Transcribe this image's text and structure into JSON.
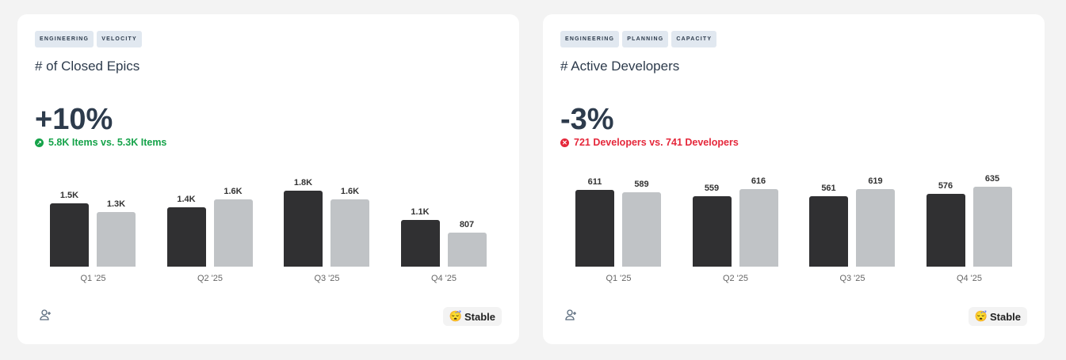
{
  "cards": [
    {
      "tags": [
        "ENGINEERING",
        "VELOCITY"
      ],
      "title": "# of Closed Epics",
      "change": "+10%",
      "comparison": "5.8K Items vs. 5.3K Items",
      "trend": "up",
      "trend_color": "#16a34a",
      "badge": {
        "emoji": "😴",
        "label": "Stable"
      },
      "chart_data": {
        "type": "bar",
        "categories": [
          "Q1 '25",
          "Q2 '25",
          "Q3 '25",
          "Q4 '25"
        ],
        "series": [
          {
            "values": [
              1500,
              1400,
              1800,
              1100
            ],
            "labels": [
              "1.5K",
              "1.4K",
              "1.8K",
              "1.1K"
            ],
            "color": "#303032"
          },
          {
            "values": [
              1300,
              1600,
              1600,
              807
            ],
            "labels": [
              "1.3K",
              "1.6K",
              "1.6K",
              "807"
            ],
            "color": "#c0c3c6"
          }
        ]
      }
    },
    {
      "tags": [
        "ENGINEERING",
        "PLANNING",
        "CAPACITY"
      ],
      "title": "# Active Developers",
      "change": "-3%",
      "comparison": "721 Developers vs. 741 Developers",
      "trend": "down",
      "trend_color": "#e5283b",
      "badge": {
        "emoji": "😴",
        "label": "Stable"
      },
      "chart_data": {
        "type": "bar",
        "categories": [
          "Q1 '25",
          "Q2 '25",
          "Q3 '25",
          "Q4 '25"
        ],
        "series": [
          {
            "values": [
              611,
              559,
              561,
              576
            ],
            "labels": [
              "611",
              "559",
              "561",
              "576"
            ],
            "color": "#303032"
          },
          {
            "values": [
              589,
              616,
              619,
              635
            ],
            "labels": [
              "589",
              "616",
              "619",
              "635"
            ],
            "color": "#c0c3c6"
          }
        ]
      }
    }
  ]
}
